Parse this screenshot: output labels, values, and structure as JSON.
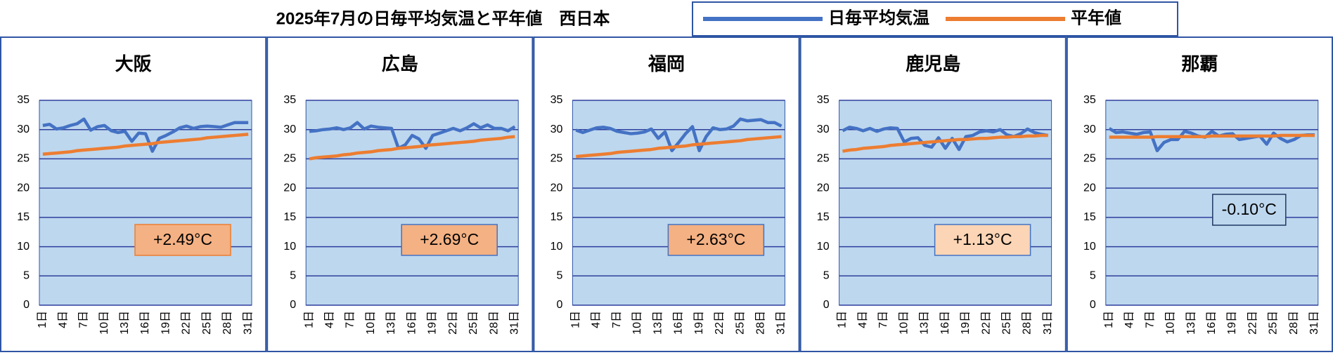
{
  "title": "2025年7月の日毎平均気温と平年値　西日本",
  "legend": [
    {
      "name": "日毎平均気温",
      "color": "#4472c4"
    },
    {
      "name": "平年値",
      "color": "#ed7d31"
    }
  ],
  "chart_data": [
    {
      "type": "line",
      "title": "大阪",
      "categories": [
        "1日",
        null,
        null,
        "4日",
        null,
        null,
        "7日",
        null,
        null,
        "10日",
        null,
        null,
        "13日",
        null,
        null,
        "16日",
        null,
        null,
        "19日",
        null,
        null,
        "22日",
        null,
        null,
        "25日",
        null,
        null,
        "28日",
        null,
        null,
        "31日"
      ],
      "series": [
        {
          "values": [
            30.7,
            30.9,
            30.1,
            30.3,
            30.7,
            31.0,
            31.8,
            29.9,
            30.5,
            30.7,
            29.8,
            29.5,
            29.7,
            28.0,
            29.4,
            29.3,
            26.3,
            28.5,
            29.0,
            29.6,
            30.3,
            30.6,
            30.2,
            30.5,
            30.6,
            30.5,
            30.4,
            30.8,
            31.2,
            31.2,
            31.2
          ]
        },
        {
          "values": [
            25.8,
            25.9,
            26.0,
            26.1,
            26.2,
            26.4,
            26.5,
            26.6,
            26.7,
            26.8,
            26.9,
            27.0,
            27.2,
            27.3,
            27.4,
            27.5,
            27.6,
            27.8,
            27.9,
            28.0,
            28.1,
            28.2,
            28.3,
            28.4,
            28.6,
            28.7,
            28.8,
            28.9,
            29.0,
            29.1,
            29.2
          ]
        }
      ],
      "ylim": [
        0,
        35
      ],
      "yticks": [
        0,
        5,
        10,
        15,
        20,
        25,
        30,
        35
      ],
      "grid": true,
      "annotation": {
        "text": "+2.49°C",
        "fill": "#f4b183",
        "border": "#ed7d31"
      }
    },
    {
      "type": "line",
      "title": "広島",
      "categories": [
        "1日",
        null,
        null,
        "4日",
        null,
        null,
        "7日",
        null,
        null,
        "10日",
        null,
        null,
        "13日",
        null,
        null,
        "16日",
        null,
        null,
        "19日",
        null,
        null,
        "22日",
        null,
        null,
        "25日",
        null,
        null,
        "28日",
        null,
        null,
        "31日"
      ],
      "series": [
        {
          "values": [
            29.7,
            29.8,
            30.0,
            30.1,
            30.3,
            30.0,
            30.3,
            31.2,
            30.1,
            30.6,
            30.4,
            30.3,
            30.2,
            26.8,
            27.4,
            29.0,
            28.4,
            26.8,
            29.0,
            29.4,
            29.8,
            30.2,
            29.8,
            30.3,
            31.0,
            30.3,
            30.8,
            30.2,
            30.2,
            29.8,
            30.5
          ]
        },
        {
          "values": [
            25.0,
            25.2,
            25.3,
            25.4,
            25.5,
            25.7,
            25.8,
            26.0,
            26.1,
            26.2,
            26.4,
            26.5,
            26.6,
            26.8,
            26.9,
            27.0,
            27.1,
            27.3,
            27.4,
            27.5,
            27.6,
            27.7,
            27.8,
            27.9,
            28.0,
            28.2,
            28.3,
            28.4,
            28.5,
            28.7,
            28.8
          ]
        }
      ],
      "ylim": [
        0,
        35
      ],
      "yticks": [
        0,
        5,
        10,
        15,
        20,
        25,
        30,
        35
      ],
      "grid": true,
      "annotation": {
        "text": "+2.69°C",
        "fill": "#f4b183",
        "border": "#4472c4"
      }
    },
    {
      "type": "line",
      "title": "福岡",
      "categories": [
        "1日",
        null,
        null,
        "4日",
        null,
        null,
        "7日",
        null,
        null,
        "10日",
        null,
        null,
        "13日",
        null,
        null,
        "16日",
        null,
        null,
        "19日",
        null,
        null,
        "22日",
        null,
        null,
        "25日",
        null,
        null,
        "28日",
        null,
        null,
        "31日"
      ],
      "series": [
        {
          "values": [
            29.9,
            29.5,
            29.9,
            30.3,
            30.4,
            30.2,
            29.7,
            29.5,
            29.3,
            29.4,
            29.6,
            30.1,
            28.5,
            29.6,
            26.4,
            27.8,
            29.3,
            30.5,
            26.4,
            28.8,
            30.3,
            30.0,
            30.1,
            30.6,
            31.8,
            31.5,
            31.6,
            31.7,
            31.2,
            31.2,
            30.6
          ]
        },
        {
          "values": [
            25.4,
            25.5,
            25.6,
            25.7,
            25.8,
            25.9,
            26.1,
            26.2,
            26.3,
            26.4,
            26.5,
            26.6,
            26.8,
            26.9,
            27.0,
            27.1,
            27.2,
            27.4,
            27.5,
            27.6,
            27.7,
            27.8,
            27.9,
            28.0,
            28.1,
            28.3,
            28.4,
            28.5,
            28.6,
            28.7,
            28.8
          ]
        }
      ],
      "ylim": [
        0,
        35
      ],
      "yticks": [
        0,
        5,
        10,
        15,
        20,
        25,
        30,
        35
      ],
      "grid": true,
      "annotation": {
        "text": "+2.63°C",
        "fill": "#f4b183",
        "border": "#4472c4"
      }
    },
    {
      "type": "line",
      "title": "鹿児島",
      "categories": [
        "1日",
        null,
        null,
        "4日",
        null,
        null,
        "7日",
        null,
        null,
        "10日",
        null,
        null,
        "13日",
        null,
        null,
        "16日",
        null,
        null,
        "19日",
        null,
        null,
        "22日",
        null,
        null,
        "25日",
        null,
        null,
        "28日",
        null,
        null,
        "31日"
      ],
      "series": [
        {
          "values": [
            29.8,
            30.4,
            30.2,
            29.8,
            30.2,
            29.7,
            30.1,
            30.3,
            30.2,
            27.9,
            28.5,
            28.6,
            27.3,
            27.0,
            28.6,
            26.8,
            28.5,
            26.6,
            28.8,
            29.0,
            29.6,
            29.8,
            29.6,
            30.0,
            29.1,
            28.8,
            29.3,
            30.1,
            29.5,
            29.2,
            29.0
          ]
        },
        {
          "values": [
            26.3,
            26.5,
            26.6,
            26.8,
            26.9,
            27.0,
            27.1,
            27.3,
            27.4,
            27.5,
            27.6,
            27.7,
            27.8,
            27.9,
            28.0,
            28.1,
            28.2,
            28.3,
            28.3,
            28.4,
            28.5,
            28.5,
            28.6,
            28.7,
            28.7,
            28.8,
            28.8,
            28.9,
            28.9,
            29.0,
            29.0
          ]
        }
      ],
      "ylim": [
        0,
        35
      ],
      "yticks": [
        0,
        5,
        10,
        15,
        20,
        25,
        30,
        35
      ],
      "grid": true,
      "annotation": {
        "text": "+1.13°C",
        "fill": "#fbd5b5",
        "border": "#4472c4"
      }
    },
    {
      "type": "line",
      "title": "那覇",
      "categories": [
        "1日",
        null,
        null,
        "4日",
        null,
        null,
        "7日",
        null,
        null,
        "10日",
        null,
        null,
        "13日",
        null,
        null,
        "16日",
        null,
        null,
        "19日",
        null,
        null,
        "22日",
        null,
        null,
        "25日",
        null,
        null,
        "28日",
        null,
        null,
        "31日"
      ],
      "series": [
        {
          "values": [
            30.2,
            29.5,
            29.6,
            29.4,
            29.2,
            29.5,
            29.6,
            26.4,
            27.8,
            28.3,
            28.3,
            29.7,
            29.4,
            28.9,
            28.7,
            29.7,
            28.9,
            29.2,
            29.3,
            28.3,
            28.5,
            28.7,
            28.9,
            27.5,
            29.4,
            28.5,
            27.9,
            28.3,
            29.0,
            29.1,
            29.1
          ]
        },
        {
          "values": [
            28.7,
            28.7,
            28.7,
            28.7,
            28.7,
            28.7,
            28.7,
            28.8,
            28.8,
            28.8,
            28.8,
            28.8,
            28.8,
            28.8,
            28.8,
            28.9,
            28.9,
            28.9,
            28.9,
            28.9,
            28.9,
            28.9,
            28.9,
            28.9,
            28.9,
            29.0,
            29.0,
            29.0,
            29.0,
            29.0,
            29.0
          ]
        }
      ],
      "ylim": [
        0,
        35
      ],
      "yticks": [
        0,
        5,
        10,
        15,
        20,
        25,
        30,
        35
      ],
      "grid": true,
      "annotation": {
        "text": "-0.10°C",
        "fill": "#bdd7ee",
        "border": "#1f3864"
      }
    }
  ]
}
